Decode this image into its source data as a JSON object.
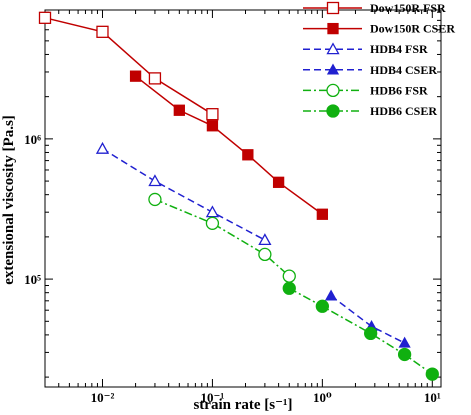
{
  "chart_data": {
    "type": "line",
    "x_label": "strain rate [s⁻¹]",
    "y_label": "extensional viscosity [Pa.s]",
    "xscale": "log",
    "yscale": "log",
    "xlim": [
      0.003,
      12
    ],
    "ylim": [
      17000,
      8300000
    ],
    "xticks": [
      {
        "value": 0.01,
        "label": "10⁻²"
      },
      {
        "value": 0.1,
        "label": "10⁻¹"
      },
      {
        "value": 1,
        "label": "10⁰"
      },
      {
        "value": 10,
        "label": "10¹"
      }
    ],
    "yticks": [
      {
        "value": 100000,
        "label": "10⁵"
      },
      {
        "value": 1000000,
        "label": "10⁶"
      }
    ],
    "legend": "upper right",
    "series": [
      {
        "name": "Dow150R FSR",
        "color": "#c00000",
        "dash": "solid",
        "marker": "square",
        "filled": false,
        "x": [
          0.003,
          0.01,
          0.03,
          0.1
        ],
        "values": [
          7300000,
          5800000,
          2700000,
          1500000
        ]
      },
      {
        "name": "Dow150R CSER",
        "color": "#c00000",
        "dash": "solid",
        "marker": "square",
        "filled": true,
        "x": [
          0.02,
          0.05,
          0.1,
          0.21,
          0.4,
          1
        ],
        "values": [
          2800000,
          1600000,
          1240000,
          770000,
          490000,
          290000
        ]
      },
      {
        "name": "HDB4 FSR",
        "color": "#2020d0",
        "dash": "dashed",
        "marker": "triangle",
        "filled": false,
        "x": [
          0.01,
          0.03,
          0.1,
          0.3
        ],
        "values": [
          850000,
          500000,
          300000,
          190000
        ]
      },
      {
        "name": "HDB4 CSER",
        "color": "#2020d0",
        "dash": "dashed",
        "marker": "triangle",
        "filled": true,
        "x": [
          1.2,
          2.8,
          5.6
        ],
        "values": [
          76000,
          46000,
          35000
        ]
      },
      {
        "name": "HDB6 FSR",
        "color": "#10b010",
        "dash": "dashdot",
        "marker": "circle",
        "filled": false,
        "x": [
          0.03,
          0.1,
          0.3,
          0.5
        ],
        "values": [
          370000,
          250000,
          150000,
          105000
        ]
      },
      {
        "name": "HDB6  CSER",
        "color": "#10b010",
        "dash": "dashdot",
        "marker": "circle",
        "filled": true,
        "x": [
          0.5,
          1,
          2.75,
          5.6,
          10
        ],
        "values": [
          86000,
          64000,
          41000,
          29000,
          21000
        ]
      }
    ]
  }
}
